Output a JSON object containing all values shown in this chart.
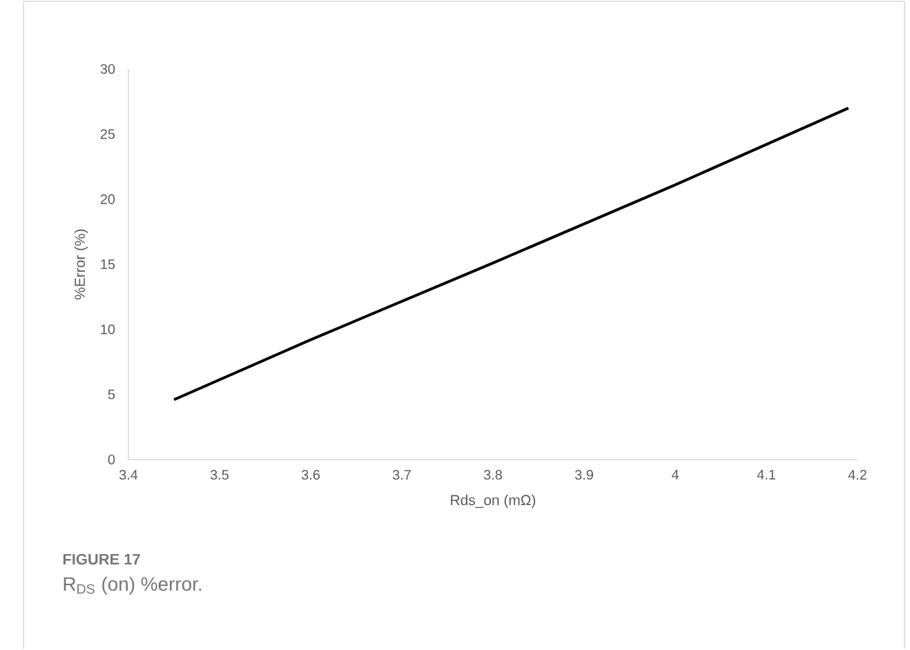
{
  "chart_data": {
    "type": "line",
    "xlabel": "Rds_on (mΩ)",
    "ylabel": "%Error (%)",
    "x": [
      3.45,
      3.6,
      3.8,
      4.0,
      4.19
    ],
    "series": [
      {
        "color": "#000000",
        "values": [
          4.6,
          9.2,
          15.1,
          21.1,
          27.0
        ]
      }
    ],
    "xlim": [
      3.4,
      4.2
    ],
    "xticks": [
      3.4,
      3.5,
      3.6,
      3.7,
      3.8,
      3.9,
      {
        "value": 4.0,
        "label": "4"
      },
      4.1,
      4.2
    ],
    "ylim": [
      0,
      30
    ],
    "yticks": [
      0,
      5,
      10,
      15,
      20,
      25,
      30
    ],
    "grid": false,
    "legend": false,
    "marker": "none",
    "line_style": "solid",
    "annotations": [
      "**FIGURE 17**",
      "R$_{DS}$ (on) %error."
    ]
  }
}
